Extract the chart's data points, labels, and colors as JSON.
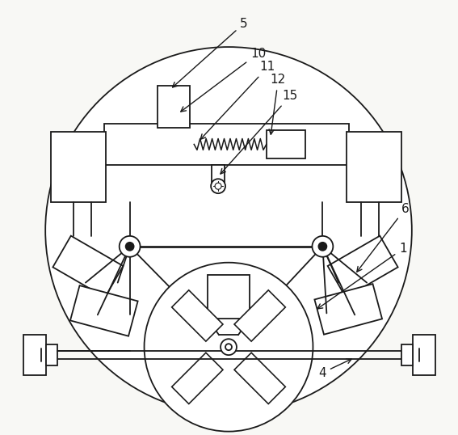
{
  "bg_color": "#f8f8f5",
  "line_color": "#1a1a1a",
  "lw": 1.3,
  "fig_w": 5.67,
  "fig_h": 5.38,
  "dpi": 100
}
